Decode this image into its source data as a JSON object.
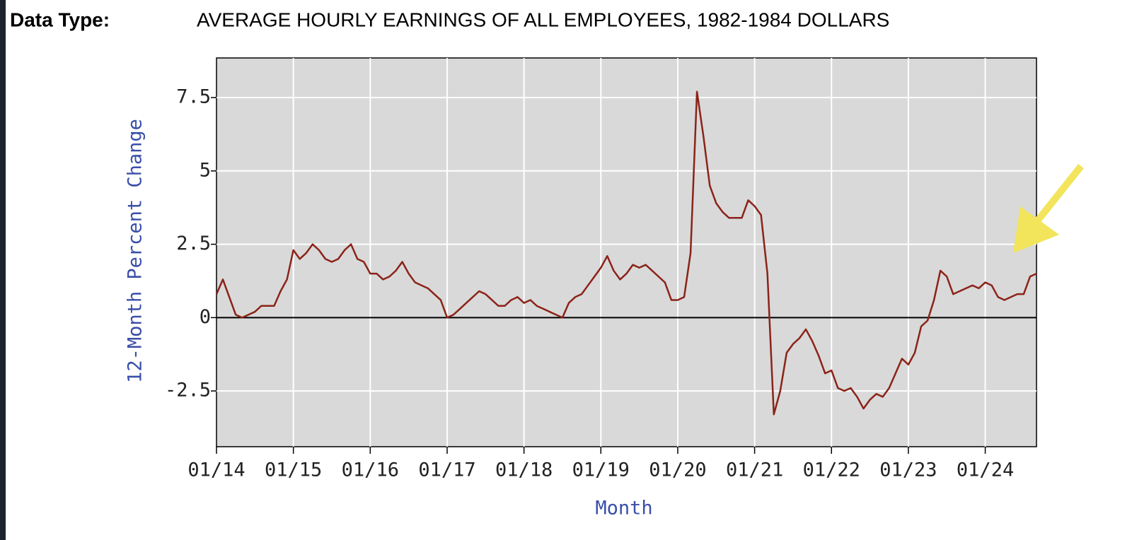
{
  "chart_data": {
    "type": "line",
    "header_label": "Data Type:",
    "title": "AVERAGE HOURLY EARNINGS OF ALL EMPLOYEES, 1982-1984 DOLLARS",
    "ylabel": "12-Month Percent Change",
    "xlabel": "Month",
    "categories": [
      "01/14",
      null,
      null,
      null,
      null,
      null,
      null,
      null,
      null,
      null,
      null,
      null,
      "01/15",
      null,
      null,
      null,
      null,
      null,
      null,
      null,
      null,
      null,
      null,
      null,
      "01/16",
      null,
      null,
      null,
      null,
      null,
      null,
      null,
      null,
      null,
      null,
      null,
      "01/17",
      null,
      null,
      null,
      null,
      null,
      null,
      null,
      null,
      null,
      null,
      null,
      "01/18",
      null,
      null,
      null,
      null,
      null,
      null,
      null,
      null,
      null,
      null,
      null,
      "01/19",
      null,
      null,
      null,
      null,
      null,
      null,
      null,
      null,
      null,
      null,
      null,
      "01/20",
      null,
      null,
      null,
      null,
      null,
      null,
      null,
      null,
      null,
      null,
      null,
      "01/21",
      null,
      null,
      null,
      null,
      null,
      null,
      null,
      null,
      null,
      null,
      null,
      "01/22",
      null,
      null,
      null,
      null,
      null,
      null,
      null,
      null,
      null,
      null,
      null,
      "01/23",
      null,
      null,
      null,
      null,
      null,
      null,
      null,
      null,
      null,
      null,
      null,
      "01/24",
      null,
      null,
      null,
      null,
      null,
      null,
      null,
      null
    ],
    "series": [
      {
        "color": "#8b2318",
        "values": [
          0.8,
          1.3,
          0.7,
          0.1,
          0.0,
          0.1,
          0.2,
          0.4,
          0.4,
          0.4,
          0.9,
          1.3,
          2.3,
          2.0,
          2.2,
          2.5,
          2.3,
          2.0,
          1.9,
          2.0,
          2.3,
          2.5,
          2.0,
          1.9,
          1.5,
          1.5,
          1.3,
          1.4,
          1.6,
          1.9,
          1.5,
          1.2,
          1.1,
          1.0,
          0.8,
          0.6,
          0.0,
          0.1,
          0.3,
          0.5,
          0.7,
          0.9,
          0.8,
          0.6,
          0.4,
          0.4,
          0.6,
          0.7,
          0.5,
          0.6,
          0.4,
          0.3,
          0.2,
          0.1,
          0.0,
          0.5,
          0.7,
          0.8,
          1.1,
          1.4,
          1.7,
          2.1,
          1.6,
          1.3,
          1.5,
          1.8,
          1.7,
          1.8,
          1.6,
          1.4,
          1.2,
          0.6,
          0.6,
          0.7,
          2.2,
          7.7,
          6.2,
          4.5,
          3.9,
          3.6,
          3.4,
          3.4,
          3.4,
          4.0,
          3.8,
          3.5,
          1.5,
          -3.3,
          -2.5,
          -1.2,
          -0.9,
          -0.7,
          -0.4,
          -0.8,
          -1.3,
          -1.9,
          -1.8,
          -2.4,
          -2.5,
          -2.4,
          -2.7,
          -3.1,
          -2.8,
          -2.6,
          -2.7,
          -2.4,
          -1.9,
          -1.4,
          -1.6,
          -1.2,
          -0.3,
          -0.1,
          0.6,
          1.6,
          1.4,
          0.8,
          0.9,
          1.0,
          1.1,
          1.0,
          1.2,
          1.1,
          0.7,
          0.6,
          0.7,
          0.8,
          0.8,
          1.4,
          1.5
        ]
      }
    ],
    "ylim": [
      -4.4,
      8.85
    ],
    "yticks": [
      -2.5,
      0,
      2.5,
      5,
      7.5
    ],
    "grid": true,
    "background": "#d9d9d9"
  }
}
